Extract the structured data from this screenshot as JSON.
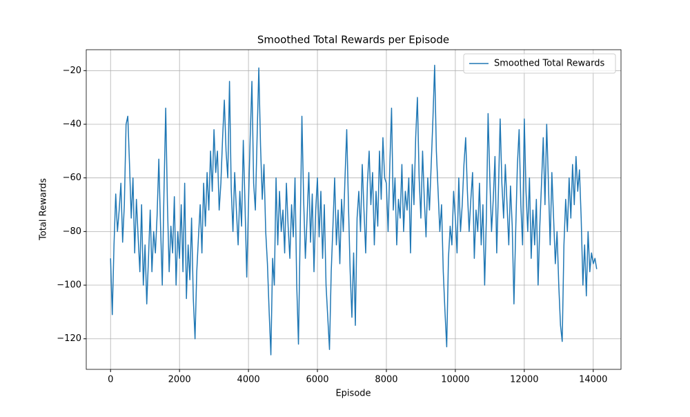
{
  "chart_data": {
    "type": "line",
    "title": "Smoothed Total Rewards per Episode",
    "xlabel": "Episode",
    "ylabel": "Total Rewards",
    "x": [
      0,
      50,
      100,
      150,
      200,
      250,
      300,
      350,
      400,
      450,
      500,
      550,
      600,
      650,
      700,
      750,
      800,
      850,
      900,
      950,
      1000,
      1050,
      1100,
      1150,
      1200,
      1250,
      1300,
      1350,
      1400,
      1450,
      1500,
      1550,
      1600,
      1650,
      1700,
      1750,
      1800,
      1850,
      1900,
      1950,
      2000,
      2050,
      2100,
      2150,
      2200,
      2250,
      2300,
      2350,
      2400,
      2450,
      2500,
      2550,
      2600,
      2650,
      2700,
      2750,
      2800,
      2850,
      2900,
      2950,
      3000,
      3050,
      3100,
      3150,
      3200,
      3250,
      3300,
      3350,
      3400,
      3450,
      3500,
      3550,
      3600,
      3650,
      3700,
      3750,
      3800,
      3850,
      3900,
      3950,
      4000,
      4050,
      4100,
      4150,
      4200,
      4250,
      4300,
      4350,
      4400,
      4450,
      4500,
      4550,
      4600,
      4650,
      4700,
      4750,
      4800,
      4850,
      4900,
      4950,
      5000,
      5050,
      5100,
      5150,
      5200,
      5250,
      5300,
      5350,
      5400,
      5450,
      5500,
      5550,
      5600,
      5650,
      5700,
      5750,
      5800,
      5850,
      5900,
      5950,
      6000,
      6050,
      6100,
      6150,
      6200,
      6250,
      6300,
      6350,
      6400,
      6450,
      6500,
      6550,
      6600,
      6650,
      6700,
      6750,
      6800,
      6850,
      6900,
      6950,
      7000,
      7050,
      7100,
      7150,
      7200,
      7250,
      7300,
      7350,
      7400,
      7450,
      7500,
      7550,
      7600,
      7650,
      7700,
      7750,
      7800,
      7850,
      7900,
      7950,
      8000,
      8050,
      8100,
      8150,
      8200,
      8250,
      8300,
      8350,
      8400,
      8450,
      8500,
      8550,
      8600,
      8650,
      8700,
      8750,
      8800,
      8850,
      8900,
      8950,
      9000,
      9050,
      9100,
      9150,
      9200,
      9250,
      9300,
      9350,
      9400,
      9450,
      9500,
      9550,
      9600,
      9650,
      9700,
      9750,
      9800,
      9850,
      9900,
      9950,
      10000,
      10050,
      10100,
      10150,
      10200,
      10250,
      10300,
      10350,
      10400,
      10450,
      10500,
      10550,
      10600,
      10650,
      10700,
      10750,
      10800,
      10850,
      10900,
      10950,
      11000,
      11050,
      11100,
      11150,
      11200,
      11250,
      11300,
      11350,
      11400,
      11450,
      11500,
      11550,
      11600,
      11650,
      11700,
      11750,
      11800,
      11850,
      11900,
      11950,
      12000,
      12050,
      12100,
      12150,
      12200,
      12250,
      12300,
      12350,
      12400,
      12450,
      12500,
      12550,
      12600,
      12650,
      12700,
      12750,
      12800,
      12850,
      12900,
      12950,
      13000,
      13050,
      13100,
      13150,
      13200,
      13250,
      13300,
      13350,
      13400,
      13450,
      13500,
      13550,
      13600,
      13650,
      13700,
      13750,
      13800,
      13850,
      13900,
      13950,
      14000,
      14050,
      14100
    ],
    "series": [
      {
        "name": "Smoothed Total Rewards",
        "color": "#1f77b4",
        "values": [
          -90,
          -111,
          -85,
          -66,
          -80,
          -72,
          -62,
          -84,
          -70,
          -40,
          -37,
          -55,
          -75,
          -60,
          -88,
          -68,
          -82,
          -95,
          -70,
          -100,
          -85,
          -107,
          -90,
          -72,
          -95,
          -80,
          -88,
          -74,
          -53,
          -78,
          -100,
          -65,
          -34,
          -70,
          -95,
          -78,
          -88,
          -67,
          -100,
          -80,
          -90,
          -70,
          -95,
          -62,
          -105,
          -85,
          -98,
          -75,
          -105,
          -120,
          -95,
          -82,
          -70,
          -88,
          -62,
          -78,
          -58,
          -72,
          -50,
          -65,
          -42,
          -58,
          -50,
          -72,
          -62,
          -45,
          -31,
          -50,
          -60,
          -24,
          -64,
          -80,
          -58,
          -72,
          -85,
          -65,
          -78,
          -46,
          -70,
          -97,
          -70,
          -45,
          -24,
          -62,
          -72,
          -45,
          -19,
          -48,
          -68,
          -55,
          -80,
          -92,
          -110,
          -126,
          -90,
          -100,
          -60,
          -85,
          -65,
          -80,
          -72,
          -88,
          -62,
          -78,
          -90,
          -70,
          -82,
          -60,
          -100,
          -122,
          -80,
          -37,
          -68,
          -90,
          -75,
          -58,
          -84,
          -66,
          -95,
          -72,
          -60,
          -82,
          -65,
          -90,
          -70,
          -100,
          -112,
          -124,
          -95,
          -78,
          -60,
          -85,
          -72,
          -92,
          -68,
          -80,
          -60,
          -42,
          -70,
          -95,
          -112,
          -88,
          -115,
          -75,
          -65,
          -80,
          -55,
          -72,
          -88,
          -62,
          -50,
          -70,
          -58,
          -85,
          -65,
          -78,
          -50,
          -68,
          -45,
          -60,
          -62,
          -80,
          -55,
          -34,
          -72,
          -60,
          -85,
          -68,
          -75,
          -55,
          -80,
          -65,
          -72,
          -60,
          -88,
          -55,
          -70,
          -45,
          -30,
          -60,
          -75,
          -50,
          -68,
          -82,
          -60,
          -72,
          -55,
          -38,
          -18,
          -50,
          -65,
          -80,
          -70,
          -95,
          -110,
          -123,
          -90,
          -78,
          -85,
          -65,
          -75,
          -88,
          -60,
          -80,
          -70,
          -55,
          -45,
          -65,
          -80,
          -68,
          -58,
          -90,
          -72,
          -80,
          -62,
          -85,
          -70,
          -100,
          -75,
          -36,
          -60,
          -80,
          -68,
          -52,
          -88,
          -65,
          -38,
          -62,
          -75,
          -55,
          -70,
          -85,
          -63,
          -78,
          -107,
          -80,
          -55,
          -42,
          -70,
          -85,
          -38,
          -65,
          -80,
          -60,
          -90,
          -72,
          -85,
          -68,
          -100,
          -78,
          -62,
          -45,
          -70,
          -40,
          -62,
          -85,
          -58,
          -75,
          -92,
          -80,
          -100,
          -115,
          -121,
          -85,
          -68,
          -80,
          -60,
          -75,
          -55,
          -70,
          -52,
          -65,
          -57,
          -75,
          -100,
          -85,
          -104,
          -80,
          -95,
          -88,
          -92,
          -90,
          -94
        ]
      }
    ],
    "xlim": [
      -705,
      14805
    ],
    "ylim": [
      -131.4,
      -12.2
    ],
    "xticks": [
      0,
      2000,
      4000,
      6000,
      8000,
      10000,
      12000,
      14000
    ],
    "yticks": [
      {
        "value": -120,
        "label": "−120"
      },
      {
        "value": -100,
        "label": "−100"
      },
      {
        "value": -80,
        "label": "−80"
      },
      {
        "value": -60,
        "label": "−60"
      },
      {
        "value": -40,
        "label": "−40"
      },
      {
        "value": -20,
        "label": "−20"
      }
    ],
    "grid": true,
    "legend": "upper right"
  }
}
